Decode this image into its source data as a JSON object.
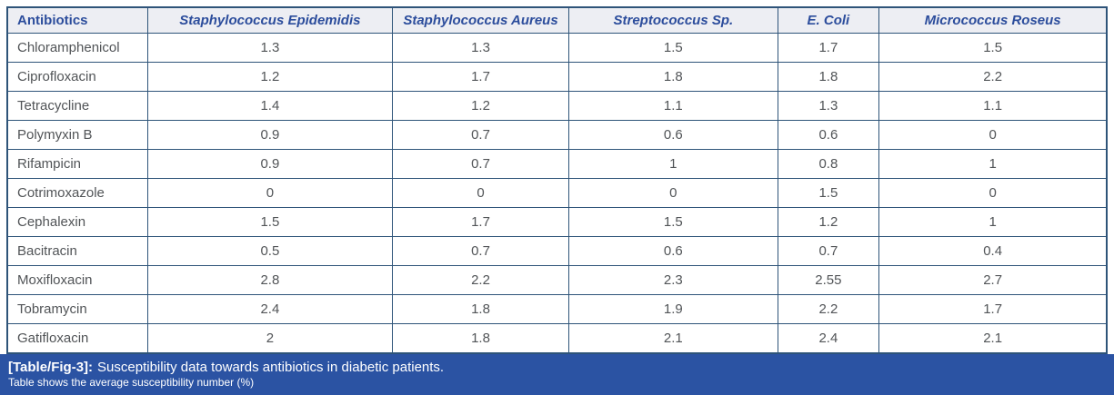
{
  "chart_data": {
    "type": "table",
    "title": "Susceptibility data towards antibiotics in diabetic patients",
    "columns": [
      "Antibiotics",
      "Staphylococcus Epidemidis",
      "Staphylococcus Aureus",
      "Streptococcus Sp.",
      "E. Coli",
      "Micrococcus Roseus"
    ],
    "rows": [
      {
        "antibiotic": "Chloramphenicol",
        "values": [
          "1.3",
          "1.3",
          "1.5",
          "1.7",
          "1.5"
        ]
      },
      {
        "antibiotic": "Ciprofloxacin",
        "values": [
          "1.2",
          "1.7",
          "1.8",
          "1.8",
          "2.2"
        ]
      },
      {
        "antibiotic": "Tetracycline",
        "values": [
          "1.4",
          "1.2",
          "1.1",
          "1.3",
          "1.1"
        ]
      },
      {
        "antibiotic": "Polymyxin B",
        "values": [
          "0.9",
          "0.7",
          "0.6",
          "0.6",
          "0"
        ]
      },
      {
        "antibiotic": "Rifampicin",
        "values": [
          "0.9",
          "0.7",
          "1",
          "0.8",
          "1"
        ]
      },
      {
        "antibiotic": "Cotrimoxazole",
        "values": [
          "0",
          "0",
          "0",
          "1.5",
          "0"
        ]
      },
      {
        "antibiotic": "Cephalexin",
        "values": [
          "1.5",
          "1.7",
          "1.5",
          "1.2",
          "1"
        ]
      },
      {
        "antibiotic": "Bacitracin",
        "values": [
          "0.5",
          "0.7",
          "0.6",
          "0.7",
          "0.4"
        ]
      },
      {
        "antibiotic": "Moxifloxacin",
        "values": [
          "2.8",
          "2.2",
          "2.3",
          "2.55",
          "2.7"
        ]
      },
      {
        "antibiotic": "Tobramycin",
        "values": [
          "2.4",
          "1.8",
          "1.9",
          "2.2",
          "1.7"
        ]
      },
      {
        "antibiotic": "Gatifloxacin",
        "values": [
          "2",
          "1.8",
          "2.1",
          "2.4",
          "2.1"
        ]
      }
    ]
  },
  "caption": {
    "label": "[Table/Fig-3]:",
    "text": "Susceptibility data towards antibiotics in diabetic patients.",
    "subtext": "Table shows the average susceptibility number (%)"
  },
  "colors": {
    "table_border": "#2e5479",
    "header_background": "#edeef3",
    "header_text": "#2c4d9c",
    "cell_text": "#515457",
    "caption_background": "#2b53a3",
    "caption_text": "#ffffff"
  }
}
